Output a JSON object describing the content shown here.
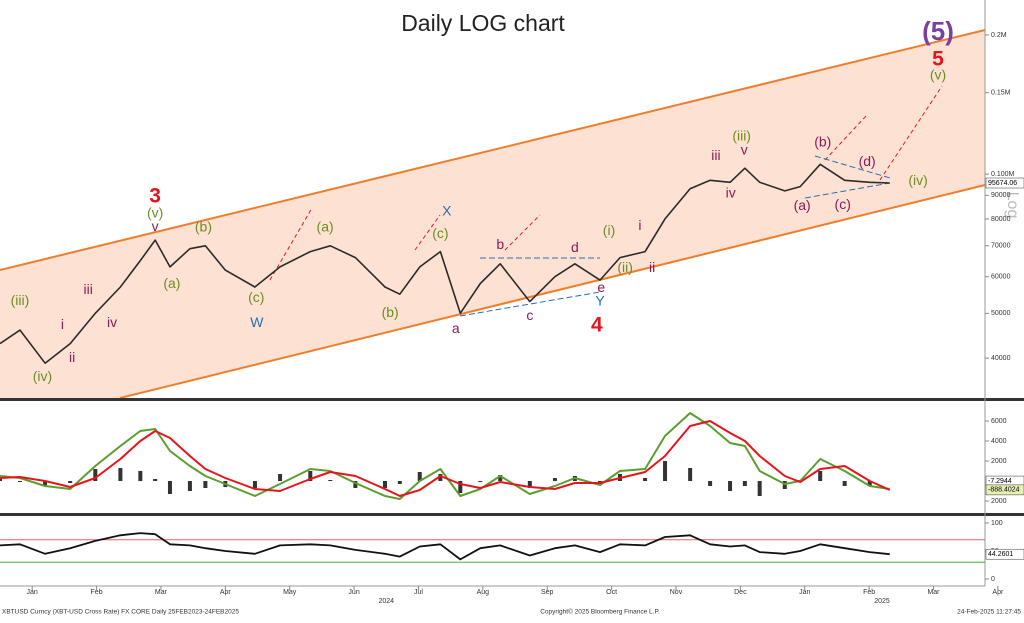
{
  "title": "Daily LOG chart",
  "watermark": "Log",
  "footer": {
    "left": "XBTUSD Curncy (XBT-USD Cross Rate) FX CORE  Daily 25FEB2023-24FEB2025",
    "center": "Copyright© 2025 Bloomberg Finance L.P.",
    "right": "24-Feb-2025 11:27:45"
  },
  "chart_data": [
    {
      "type": "line",
      "log_scale": true,
      "color": "#2b2b2b",
      "x": [
        -0.5,
        -0.19,
        0.2,
        0.59,
        0.98,
        1.37,
        1.68,
        1.91,
        2.14,
        2.45,
        2.69,
        3.0,
        3.46,
        3.85,
        4.32,
        4.63,
        5.02,
        5.48,
        5.71,
        6.02,
        6.34,
        6.65,
        6.96,
        7.27,
        7.73,
        8.12,
        8.43,
        8.82,
        9.13,
        9.52,
        9.83,
        10.22,
        10.53,
        10.84,
        11.07,
        11.3,
        11.69,
        11.93,
        12.24,
        12.62,
        13.01,
        13.32
      ],
      "values": [
        43000,
        46000,
        39000,
        43000,
        50000,
        57000,
        65000,
        72000,
        63000,
        69000,
        70000,
        62000,
        57000,
        63000,
        68000,
        70000,
        66000,
        57000,
        55000,
        63000,
        68000,
        50000,
        58000,
        64000,
        53000,
        60000,
        64000,
        59000,
        66000,
        68000,
        80000,
        93000,
        97000,
        96000,
        103000,
        96000,
        92000,
        94000,
        105000,
        97000,
        96000,
        95674.06
      ],
      "xlim": [
        -0.5,
        14.8
      ],
      "ylim": [
        32800,
        238000
      ],
      "yticks": [
        40000,
        50000,
        60000,
        70000,
        80000,
        90000,
        {
          "value": 100000,
          "label": "0.100M"
        },
        {
          "value": 150000,
          "label": "0.15M"
        },
        {
          "value": 200000,
          "label": "0.2M"
        }
      ],
      "annotations": [
        {
          "text": "(5)",
          "x": 14.07,
          "y": 202000,
          "color": "#7b3fa0"
        },
        {
          "text": "5",
          "x": 14.07,
          "y": 176500,
          "color": "#e8141c"
        },
        {
          "text": "(v)",
          "x": 14.07,
          "y": 163000,
          "color": "#6b8e23"
        },
        {
          "text": "3",
          "x": 1.91,
          "y": 89200,
          "color": "#e8141c"
        },
        {
          "text": "(v)",
          "x": 1.91,
          "y": 82000,
          "color": "#6b8e23"
        },
        {
          "text": "v",
          "x": 1.91,
          "y": 76800,
          "color": "#8b1a5a"
        },
        {
          "text": "(b)",
          "x": 2.66,
          "y": 76500,
          "color": "#6b8e23"
        },
        {
          "text": "(iii)",
          "x": -0.19,
          "y": 53100,
          "color": "#6b8e23"
        },
        {
          "text": "iii",
          "x": 0.87,
          "y": 56100,
          "color": "#8b1a5a"
        },
        {
          "text": "i",
          "x": 0.47,
          "y": 47100,
          "color": "#8b1a5a"
        },
        {
          "text": "iv",
          "x": 1.24,
          "y": 47600,
          "color": "#8b1a5a"
        },
        {
          "text": "ii",
          "x": 0.62,
          "y": 40000,
          "color": "#8b1a5a"
        },
        {
          "text": "(iv)",
          "x": 0.16,
          "y": 36400,
          "color": "#6b8e23"
        },
        {
          "text": "(a)",
          "x": 2.17,
          "y": 57800,
          "color": "#6b8e23"
        },
        {
          "text": "(c)",
          "x": 3.48,
          "y": 53900,
          "color": "#6b8e23"
        },
        {
          "text": "W",
          "x": 3.49,
          "y": 47600,
          "color": "#2a6db5"
        },
        {
          "text": "(a)",
          "x": 4.55,
          "y": 76500,
          "color": "#6b8e23"
        },
        {
          "text": "(b)",
          "x": 5.56,
          "y": 50000,
          "color": "#6b8e23"
        },
        {
          "text": "(c)",
          "x": 6.34,
          "y": 74200,
          "color": "#6b8e23"
        },
        {
          "text": "X",
          "x": 6.44,
          "y": 82800,
          "color": "#2a6db5"
        },
        {
          "text": "a",
          "x": 6.58,
          "y": 46200,
          "color": "#8b1a5a"
        },
        {
          "text": "b",
          "x": 7.27,
          "y": 70200,
          "color": "#8b1a5a"
        },
        {
          "text": "c",
          "x": 7.73,
          "y": 49300,
          "color": "#8b1a5a"
        },
        {
          "text": "d",
          "x": 8.43,
          "y": 69200,
          "color": "#8b1a5a"
        },
        {
          "text": "e",
          "x": 8.84,
          "y": 56700,
          "color": "#8b1a5a"
        },
        {
          "text": "Y",
          "x": 8.82,
          "y": 52900,
          "color": "#2a6db5"
        },
        {
          "text": "4",
          "x": 8.77,
          "y": 46900,
          "color": "#e8141c"
        },
        {
          "text": "(i)",
          "x": 8.96,
          "y": 75300,
          "color": "#6b8e23"
        },
        {
          "text": "(ii)",
          "x": 9.21,
          "y": 62600,
          "color": "#6b8e23"
        },
        {
          "text": "i",
          "x": 9.44,
          "y": 77200,
          "color": "#8b1a5a"
        },
        {
          "text": "ii",
          "x": 9.63,
          "y": 62600,
          "color": "#8b1a5a"
        },
        {
          "text": "iii",
          "x": 10.62,
          "y": 109400,
          "color": "#8b1a5a"
        },
        {
          "text": "iv",
          "x": 10.85,
          "y": 90600,
          "color": "#8b1a5a"
        },
        {
          "text": "(iii)",
          "x": 11.02,
          "y": 120300,
          "color": "#6b8e23"
        },
        {
          "text": "v",
          "x": 11.06,
          "y": 112200,
          "color": "#8b1a5a"
        },
        {
          "text": "(b)",
          "x": 12.28,
          "y": 116800,
          "color": "#8b1a5a"
        },
        {
          "text": "(d)",
          "x": 12.97,
          "y": 106200,
          "color": "#8b1a5a"
        },
        {
          "text": "(a)",
          "x": 11.96,
          "y": 85300,
          "color": "#8b1a5a"
        },
        {
          "text": "(c)",
          "x": 12.59,
          "y": 85700,
          "color": "#8b1a5a"
        },
        {
          "text": "(iv)",
          "x": 13.76,
          "y": 96600,
          "color": "#6b8e23"
        }
      ]
    },
    {
      "type": "macd",
      "x": [
        -0.5,
        -0.19,
        0.2,
        0.59,
        0.98,
        1.37,
        1.68,
        1.91,
        2.14,
        2.45,
        2.69,
        3.0,
        3.46,
        3.85,
        4.32,
        4.63,
        5.02,
        5.48,
        5.71,
        6.02,
        6.34,
        6.65,
        6.96,
        7.27,
        7.73,
        8.12,
        8.43,
        8.82,
        9.13,
        9.52,
        9.83,
        10.22,
        10.53,
        10.84,
        11.07,
        11.3,
        11.69,
        11.93,
        12.24,
        12.62,
        13.01,
        13.32
      ],
      "series": [
        {
          "color": "#5a9e2f",
          "values": [
            500,
            300,
            -500,
            -800,
            1500,
            3500,
            5000,
            5200,
            3000,
            1500,
            500,
            -300,
            -1500,
            -300,
            1200,
            1000,
            -200,
            -1500,
            -1800,
            0,
            1200,
            -1500,
            -800,
            500,
            -1300,
            -500,
            300,
            -400,
            1000,
            1200,
            4500,
            6800,
            5500,
            3800,
            3500,
            1000,
            -300,
            0,
            2200,
            1000,
            -500,
            -800
          ]
        },
        {
          "color": "#e8141c",
          "values": [
            300,
            400,
            0,
            -600,
            300,
            2200,
            4000,
            5000,
            4300,
            2500,
            1200,
            300,
            -800,
            -1000,
            200,
            900,
            500,
            -800,
            -1500,
            -900,
            500,
            -300,
            -700,
            -100,
            -600,
            -800,
            -200,
            -200,
            300,
            900,
            2500,
            5500,
            6000,
            4800,
            4000,
            2500,
            500,
            -100,
            1200,
            1500,
            0,
            -888.4024
          ]
        }
      ],
      "histogram": [
        200,
        -100,
        -500,
        -200,
        1200,
        1300,
        1000,
        200,
        -1300,
        -1000,
        -700,
        -600,
        -700,
        700,
        1000,
        100,
        -700,
        -700,
        -300,
        900,
        700,
        -1200,
        -100,
        600,
        -700,
        300,
        500,
        -200,
        700,
        300,
        2000,
        1300,
        -500,
        -1000,
        -500,
        -1500,
        -800,
        100,
        1000,
        -500,
        -500,
        -7.2944
      ],
      "histogram_color": "#333333",
      "xlim": [
        -0.5,
        14.8
      ],
      "ylim": [
        -3100,
        7900
      ],
      "yticks": [
        {
          "value": -2000,
          "label": "2000"
        },
        2000,
        4000,
        6000
      ]
    },
    {
      "type": "line",
      "color": "#111111",
      "x": [
        -0.5,
        -0.19,
        0.2,
        0.59,
        0.98,
        1.37,
        1.68,
        1.91,
        2.14,
        2.45,
        2.69,
        3.0,
        3.46,
        3.85,
        4.32,
        4.63,
        5.02,
        5.48,
        5.71,
        6.02,
        6.34,
        6.65,
        6.96,
        7.27,
        7.73,
        8.12,
        8.43,
        8.82,
        9.13,
        9.52,
        9.83,
        10.22,
        10.53,
        10.84,
        11.07,
        11.3,
        11.69,
        11.93,
        12.24,
        12.62,
        13.01,
        13.32
      ],
      "values": [
        60,
        62,
        45,
        55,
        68,
        78,
        82,
        80,
        62,
        60,
        55,
        50,
        45,
        60,
        62,
        60,
        52,
        45,
        40,
        58,
        62,
        35,
        55,
        60,
        42,
        55,
        60,
        48,
        62,
        60,
        75,
        78,
        62,
        58,
        60,
        48,
        45,
        50,
        62,
        55,
        48,
        44.2601
      ],
      "xlim": [
        -0.5,
        14.8
      ],
      "ylim": [
        -10.7,
        110.7
      ],
      "yticks": [
        0,
        50,
        100
      ],
      "ref_lines": [
        {
          "value": 70,
          "color": "#e06060"
        },
        {
          "value": 30,
          "color": "#40b040"
        }
      ],
      "xticks": [
        {
          "value": 0,
          "label": "Jan"
        },
        {
          "value": 1,
          "label": "Feb"
        },
        {
          "value": 2,
          "label": "Mar"
        },
        {
          "value": 3,
          "label": "Apr"
        },
        {
          "value": 4,
          "label": "May"
        },
        {
          "value": 5,
          "label": "Jun"
        },
        {
          "value": 6,
          "label": "Jul"
        },
        {
          "value": 7,
          "label": "Aug"
        },
        {
          "value": 8,
          "label": "Sep"
        },
        {
          "value": 9,
          "label": "Oct"
        },
        {
          "value": 10,
          "label": "Nov"
        },
        {
          "value": 11,
          "label": "Dec"
        },
        {
          "value": 12,
          "label": "Jan"
        },
        {
          "value": 13,
          "label": "Feb"
        },
        {
          "value": 14,
          "label": "Mar"
        },
        {
          "value": 15,
          "label": "Apr"
        }
      ],
      "year_labels": [
        {
          "value": 5.5,
          "label": "2024"
        },
        {
          "value": 13.2,
          "label": "2025"
        }
      ]
    }
  ]
}
